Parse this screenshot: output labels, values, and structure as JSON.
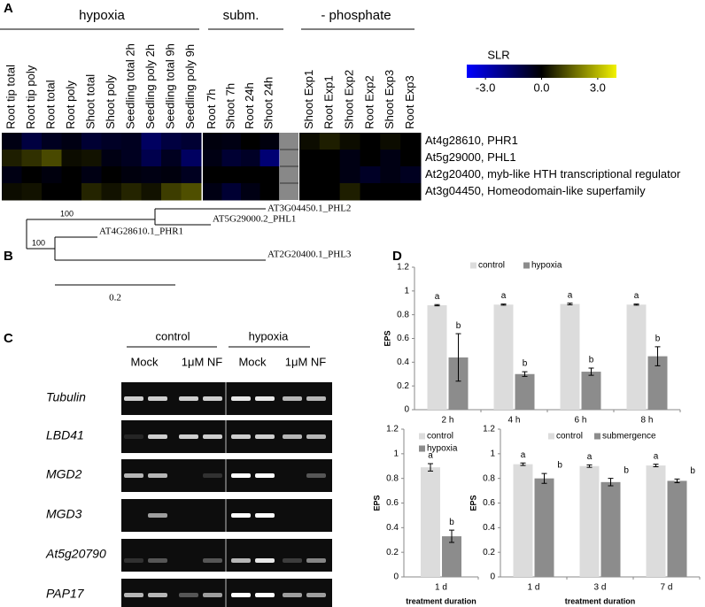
{
  "panel_labels": [
    "A",
    "B",
    "C",
    "D"
  ],
  "heatmap": {
    "groups": [
      {
        "label": "hypoxia",
        "columns": [
          "Root tip total",
          "Root tip poly",
          "Root total",
          "Root poly",
          "Shoot total",
          "Shoot poly",
          "Seedling total 2h",
          "Seedling poly 2h",
          "Seedling total 9h",
          "Seedling poly 9h"
        ]
      },
      {
        "label": "subm.",
        "columns": [
          "Root 7h",
          "Shoot 7h",
          "Root 24h",
          "Shoot 24h"
        ]
      },
      {
        "label": "- phosphate",
        "columns": [
          "Shoot Exp1",
          "Root Exp1",
          "Shoot Exp2",
          "Root Exp2",
          "Shoot Exp3",
          "Root Exp3"
        ]
      }
    ],
    "rows": [
      {
        "label": "At4g28610, PHR1",
        "values": [
          -0.3,
          -1,
          -0.5,
          -0.3,
          -0.8,
          -0.6,
          -0.5,
          -1.5,
          -1,
          -0.8,
          -0.2,
          -0.3,
          0,
          -0.2,
          0.2,
          0.5,
          0.2,
          0,
          0.2,
          0
        ]
      },
      {
        "label": "At5g29000, PHL1",
        "values": [
          0.5,
          0.8,
          1.2,
          0.2,
          0.3,
          -0.3,
          -0.5,
          -1.2,
          -0.5,
          -1.5,
          -0.3,
          -0.8,
          -0.6,
          -1.8,
          0,
          0,
          -0.3,
          0,
          -0.3,
          0
        ]
      },
      {
        "label": "At2g20400, myb-like HTH transcriptional regulator",
        "values": [
          -0.3,
          0,
          -0.2,
          0,
          -0.3,
          0,
          -0.2,
          -0.3,
          -0.2,
          -0.5,
          0,
          0,
          0,
          0,
          0,
          0,
          -0.3,
          -0.6,
          -0.3,
          -0.5
        ]
      },
      {
        "label": "At3g04450, Homeodomain-like superfamily",
        "values": [
          0.2,
          0.3,
          0,
          0,
          0.6,
          0.3,
          0.6,
          0.3,
          1,
          1.3,
          -0.3,
          -0.8,
          -0.3,
          0,
          0,
          0,
          0.5,
          0,
          0,
          0
        ]
      }
    ],
    "colorbar": {
      "title": "SLR",
      "lim": [
        -4,
        4
      ],
      "ticks": [
        {
          "value": -3,
          "label": "-3.0"
        },
        {
          "value": 0,
          "label": "0.0"
        },
        {
          "value": 3,
          "label": "3.0"
        }
      ]
    }
  },
  "tree": {
    "leaves": [
      "AT3G04450.1_PHL2",
      "AT5G29000.2_PHL1",
      "AT4G28610.1_PHR1",
      "AT2G20400.1_PHL3"
    ],
    "bootstrap": [
      100,
      100
    ],
    "scale": 0.2
  },
  "gel": {
    "conditions": [
      "control",
      "hypoxia"
    ],
    "treatments": [
      "Mock",
      "1μM NF",
      "Mock",
      "1μM NF"
    ],
    "genes": [
      "Tubulin",
      "LBD41",
      "MGD2",
      "MGD3",
      "At5g20790",
      "PAP17"
    ]
  },
  "chart_data": [
    {
      "type": "bar",
      "y_label": "EPS",
      "categories": [
        "2 h",
        "4 h",
        "6 h",
        "8 h"
      ],
      "ylim": [
        0,
        1.2
      ],
      "yticks": [
        0,
        0.2,
        0.4,
        0.6,
        0.8,
        1,
        1.2
      ],
      "series": [
        {
          "name": "control",
          "color": "#dcdcdc",
          "values": [
            0.88,
            0.885,
            0.89,
            0.885
          ],
          "errors": [
            0.005,
            0.005,
            0.007,
            0.005
          ],
          "letters": [
            "a",
            "a",
            "a",
            "a"
          ]
        },
        {
          "name": "hypoxia",
          "color": "#8c8c8c",
          "values": [
            0.44,
            0.3,
            0.32,
            0.45
          ],
          "errors": [
            0.2,
            0.02,
            0.03,
            0.08
          ],
          "letters": [
            "b",
            "b",
            "b",
            "b"
          ]
        }
      ]
    },
    {
      "type": "bar",
      "y_label": "EPS",
      "x_label": "treatment duration",
      "categories": [
        "1 d"
      ],
      "ylim": [
        0,
        1.2
      ],
      "yticks": [
        0,
        0.2,
        0.4,
        0.6,
        0.8,
        1,
        1.2
      ],
      "series": [
        {
          "name": "control",
          "color": "#dcdcdc",
          "values": [
            0.89
          ],
          "errors": [
            0.03
          ],
          "letters": [
            "a"
          ]
        },
        {
          "name": "hypoxia",
          "color": "#8c8c8c",
          "values": [
            0.33
          ],
          "errors": [
            0.05
          ],
          "letters": [
            "b"
          ]
        }
      ]
    },
    {
      "type": "bar",
      "y_label": "EPS",
      "x_label": "treatment duration",
      "categories": [
        "1 d",
        "3 d",
        "7 d"
      ],
      "ylim": [
        0,
        1.2
      ],
      "yticks": [
        0,
        0.2,
        0.4,
        0.6,
        0.8,
        1,
        1.2
      ],
      "series": [
        {
          "name": "control",
          "color": "#dcdcdc",
          "values": [
            0.915,
            0.9,
            0.905
          ],
          "errors": [
            0.01,
            0.01,
            0.01
          ],
          "letters": [
            "a",
            "a",
            "a"
          ]
        },
        {
          "name": "submergence",
          "color": "#8c8c8c",
          "values": [
            0.8,
            0.77,
            0.78
          ],
          "errors": [
            0.04,
            0.03,
            0.015
          ],
          "letters": [
            "b",
            "b",
            "b"
          ]
        }
      ]
    }
  ]
}
